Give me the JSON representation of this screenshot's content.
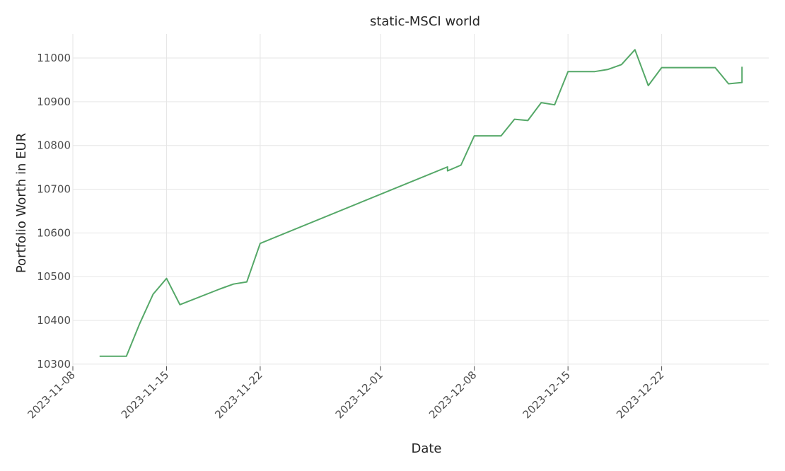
{
  "chart_data": {
    "type": "line",
    "title": "static-MSCI world",
    "xlabel": "Date",
    "ylabel": "Portfolio Worth in EUR",
    "grid": true,
    "colors": {
      "line": "#55a868",
      "grid": "#e6e6e6"
    },
    "xlim": [
      "2023-11-08",
      "2023-12-30"
    ],
    "ylim": [
      10295,
      11055
    ],
    "x_ticks": [
      "2023-11-08",
      "2023-11-15",
      "2023-11-22",
      "2023-12-01",
      "2023-12-08",
      "2023-12-15",
      "2023-12-22"
    ],
    "y_ticks": [
      10300,
      10400,
      10500,
      10600,
      10700,
      10800,
      10900,
      11000
    ],
    "series": [
      {
        "points": [
          {
            "x": "2023-11-10",
            "y": 10318
          },
          {
            "x": "2023-11-12",
            "y": 10318
          },
          {
            "x": "2023-11-13",
            "y": 10393
          },
          {
            "x": "2023-11-14",
            "y": 10460
          },
          {
            "x": "2023-11-15",
            "y": 10496
          },
          {
            "x": "2023-11-16",
            "y": 10436
          },
          {
            "x": "2023-11-19",
            "y": 10472
          },
          {
            "x": "2023-11-20",
            "y": 10483
          },
          {
            "x": "2023-11-21",
            "y": 10488
          },
          {
            "x": "2023-11-22",
            "y": 10576
          },
          {
            "x": "2023-12-06",
            "y": 10751
          },
          {
            "x": "2023-12-06",
            "y": 10742
          },
          {
            "x": "2023-12-07",
            "y": 10755
          },
          {
            "x": "2023-12-08",
            "y": 10822
          },
          {
            "x": "2023-12-10",
            "y": 10822
          },
          {
            "x": "2023-12-11",
            "y": 10860
          },
          {
            "x": "2023-12-12",
            "y": 10857
          },
          {
            "x": "2023-12-13",
            "y": 10898
          },
          {
            "x": "2023-12-14",
            "y": 10893
          },
          {
            "x": "2023-12-15",
            "y": 10969
          },
          {
            "x": "2023-12-17",
            "y": 10969
          },
          {
            "x": "2023-12-18",
            "y": 10974
          },
          {
            "x": "2023-12-19",
            "y": 10985
          },
          {
            "x": "2023-12-20",
            "y": 11019
          },
          {
            "x": "2023-12-21",
            "y": 10937
          },
          {
            "x": "2023-12-22",
            "y": 10978
          },
          {
            "x": "2023-12-26",
            "y": 10978
          },
          {
            "x": "2023-12-27",
            "y": 10941
          },
          {
            "x": "2023-12-28",
            "y": 10944
          },
          {
            "x": "2023-12-28",
            "y": 10980
          }
        ]
      }
    ]
  }
}
